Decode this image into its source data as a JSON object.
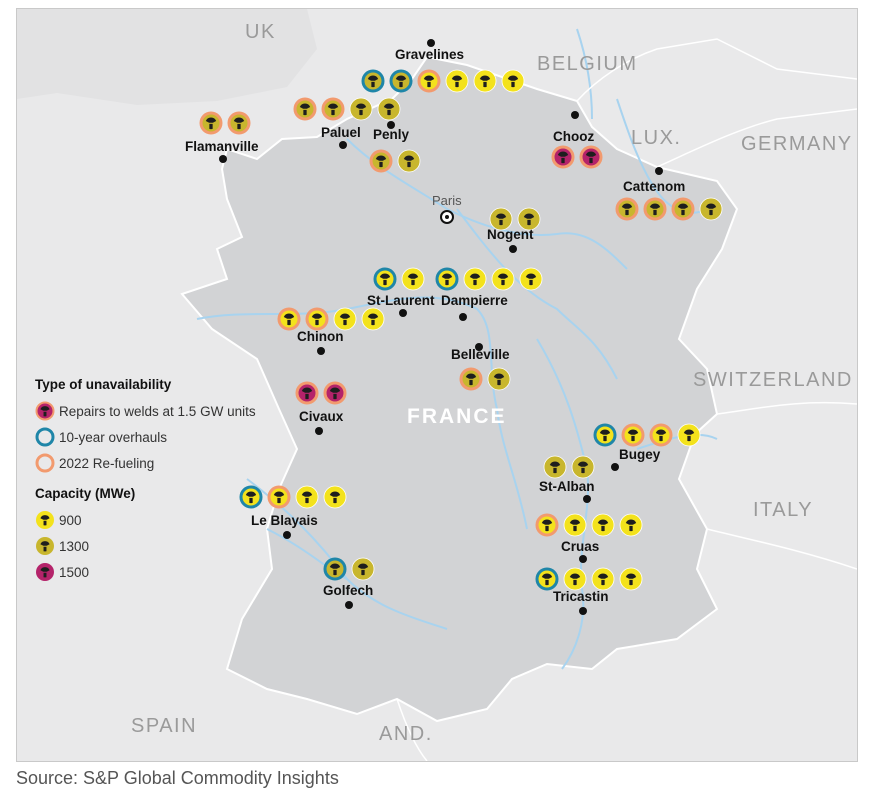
{
  "countries": {
    "uk": "UK",
    "belgium": "BELGIUM",
    "lux": "LUX.",
    "germany": "GERMANY",
    "switzerland": "SWITZERLAND",
    "italy": "ITALY",
    "spain": "SPAIN",
    "andorra": "AND.",
    "france": "FRANCE"
  },
  "capital": {
    "name": "Paris"
  },
  "plants": [
    {
      "id": "gravelines",
      "name": "Gravelines",
      "units": [
        {
          "c": "1300",
          "r": "overhaul"
        },
        {
          "c": "1300",
          "r": "overhaul"
        },
        {
          "c": "900",
          "r": "refuel"
        },
        {
          "c": "900",
          "r": "none"
        },
        {
          "c": "900",
          "r": "none"
        },
        {
          "c": "900",
          "r": "none"
        }
      ]
    },
    {
      "id": "paluel",
      "name": "Paluel",
      "units": [
        {
          "c": "1300",
          "r": "refuel"
        },
        {
          "c": "1300",
          "r": "refuel"
        },
        {
          "c": "1300",
          "r": "none"
        },
        {
          "c": "1300",
          "r": "none"
        }
      ]
    },
    {
      "id": "penly",
      "name": "Penly",
      "units": [
        {
          "c": "1300",
          "r": "refuel"
        },
        {
          "c": "1300",
          "r": "none"
        }
      ]
    },
    {
      "id": "flamanville",
      "name": "Flamanville",
      "units": [
        {
          "c": "1300",
          "r": "refuel"
        },
        {
          "c": "1300",
          "r": "refuel"
        }
      ]
    },
    {
      "id": "chooz",
      "name": "Chooz",
      "units": [
        {
          "c": "1500",
          "r": "refuel"
        },
        {
          "c": "1500",
          "r": "refuel"
        }
      ]
    },
    {
      "id": "cattenom",
      "name": "Cattenom",
      "units": [
        {
          "c": "1300",
          "r": "refuel"
        },
        {
          "c": "1300",
          "r": "refuel"
        },
        {
          "c": "1300",
          "r": "refuel"
        },
        {
          "c": "1300",
          "r": "none"
        }
      ]
    },
    {
      "id": "nogent",
      "name": "Nogent",
      "units": [
        {
          "c": "1300",
          "r": "none"
        },
        {
          "c": "1300",
          "r": "none"
        }
      ]
    },
    {
      "id": "st-laurent",
      "name": "St-Laurent",
      "units": [
        {
          "c": "900",
          "r": "overhaul"
        },
        {
          "c": "900",
          "r": "none"
        }
      ]
    },
    {
      "id": "dampierre",
      "name": "Dampierre",
      "units": [
        {
          "c": "900",
          "r": "overhaul"
        },
        {
          "c": "900",
          "r": "none"
        },
        {
          "c": "900",
          "r": "none"
        },
        {
          "c": "900",
          "r": "none"
        }
      ]
    },
    {
      "id": "chinon",
      "name": "Chinon",
      "units": [
        {
          "c": "900",
          "r": "refuel"
        },
        {
          "c": "900",
          "r": "refuel"
        },
        {
          "c": "900",
          "r": "none"
        },
        {
          "c": "900",
          "r": "none"
        }
      ]
    },
    {
      "id": "belleville",
      "name": "Belleville",
      "units": [
        {
          "c": "1300",
          "r": "refuel"
        },
        {
          "c": "1300",
          "r": "none"
        }
      ]
    },
    {
      "id": "civaux",
      "name": "Civaux",
      "units": [
        {
          "c": "1500",
          "r": "refuel"
        },
        {
          "c": "1500",
          "r": "refuel"
        }
      ]
    },
    {
      "id": "bugey",
      "name": "Bugey",
      "units": [
        {
          "c": "900",
          "r": "overhaul"
        },
        {
          "c": "900",
          "r": "refuel"
        },
        {
          "c": "900",
          "r": "refuel"
        },
        {
          "c": "900",
          "r": "none"
        }
      ]
    },
    {
      "id": "st-alban",
      "name": "St-Alban",
      "units": [
        {
          "c": "1300",
          "r": "none"
        },
        {
          "c": "1300",
          "r": "none"
        }
      ]
    },
    {
      "id": "le-blayais",
      "name": "Le Blayais",
      "units": [
        {
          "c": "900",
          "r": "overhaul"
        },
        {
          "c": "900",
          "r": "refuel"
        },
        {
          "c": "900",
          "r": "none"
        },
        {
          "c": "900",
          "r": "none"
        }
      ]
    },
    {
      "id": "cruas",
      "name": "Cruas",
      "units": [
        {
          "c": "900",
          "r": "refuel"
        },
        {
          "c": "900",
          "r": "none"
        },
        {
          "c": "900",
          "r": "none"
        },
        {
          "c": "900",
          "r": "none"
        }
      ]
    },
    {
      "id": "golfech",
      "name": "Golfech",
      "units": [
        {
          "c": "1300",
          "r": "overhaul"
        },
        {
          "c": "1300",
          "r": "none"
        }
      ]
    },
    {
      "id": "tricastin",
      "name": "Tricastin",
      "units": [
        {
          "c": "900",
          "r": "overhaul"
        },
        {
          "c": "900",
          "r": "none"
        },
        {
          "c": "900",
          "r": "none"
        },
        {
          "c": "900",
          "r": "none"
        }
      ]
    }
  ],
  "legend": {
    "unavailability_title": "Type of unavailability",
    "welds": "Repairs to welds at 1.5 GW units",
    "overhaul": "10-year overhauls",
    "refuel": "2022 Re-fueling",
    "capacity_title": "Capacity (MWe)",
    "cap_900": "900",
    "cap_1300": "1300",
    "cap_1500": "1500"
  },
  "colors": {
    "cap_900": "#f3e21c",
    "cap_1300": "#c8b62d",
    "cap_1500": "#b4236a",
    "overhaul_ring": "#1f86a8",
    "refuel_ring": "#f29a6e",
    "land_france": "#d3d4d6",
    "land_other": "#e9e9ea",
    "river": "#a9d4f0"
  },
  "source": "Source: S&P Global Commodity Insights"
}
